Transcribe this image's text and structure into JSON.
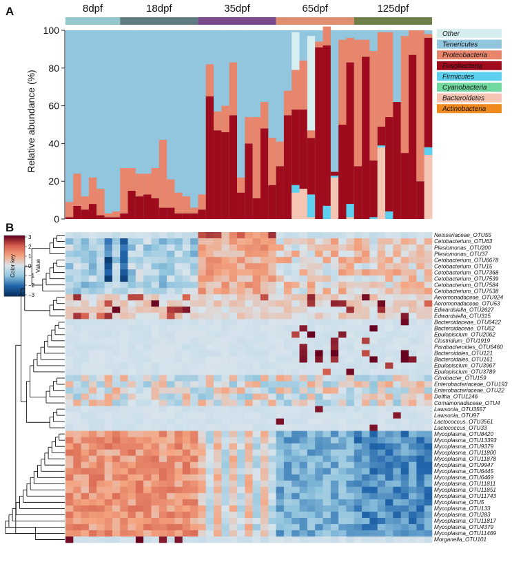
{
  "panels": {
    "a": "A",
    "b": "B"
  },
  "chart_data": [
    {
      "type": "bar",
      "stacked": true,
      "title": "",
      "xlabel": "",
      "ylabel": "Relative abundance (%)",
      "ylim": [
        0,
        100
      ],
      "yticks": [
        "0",
        "20",
        "40",
        "60",
        "80",
        "100"
      ],
      "groups": [
        {
          "label": "8dpf",
          "color": "#93c7cc",
          "count": 7
        },
        {
          "label": "18dpf",
          "color": "#5f7d80",
          "count": 10
        },
        {
          "label": "35dpf",
          "color": "#7a4a8c",
          "count": 10
        },
        {
          "label": "65dpf",
          "color": "#e0906e",
          "count": 10
        },
        {
          "label": "125dpf",
          "color": "#6e7f48",
          "count": 10
        }
      ],
      "legend": [
        {
          "name": "Other",
          "color": "#d7eef0"
        },
        {
          "name": "Tenericutes",
          "color": "#92c5de"
        },
        {
          "name": "Proteobacteria",
          "color": "#e8866d"
        },
        {
          "name": "Fusobacteria",
          "color": "#9d0b1d"
        },
        {
          "name": "Firmicutes",
          "color": "#5dd0f0"
        },
        {
          "name": "Cyanobacteria",
          "color": "#70d9a0"
        },
        {
          "name": "Bacteroidetes",
          "color": "#f5c6b4"
        },
        {
          "name": "Actinobacteria",
          "color": "#f08a1c"
        }
      ],
      "series": [
        {
          "name": "Bacteroidetes",
          "values": [
            0,
            0,
            0,
            0,
            0,
            0,
            0,
            0,
            0,
            0,
            0,
            0,
            0,
            0,
            0,
            0,
            0,
            0,
            0,
            0,
            0,
            0,
            0,
            0,
            0,
            0,
            0,
            0,
            0,
            14,
            16,
            1,
            0,
            0,
            22,
            0,
            1,
            0,
            0,
            0,
            38,
            0,
            0,
            0,
            0,
            0,
            34
          ]
        },
        {
          "name": "Firmicutes",
          "values": [
            0,
            0,
            0,
            0,
            0,
            0,
            0,
            0,
            0,
            0,
            0,
            0,
            0,
            0,
            0,
            0,
            0,
            0,
            0,
            0,
            0,
            0,
            0,
            0,
            0,
            0,
            0,
            0,
            0,
            4,
            0,
            12,
            0,
            7,
            1,
            0,
            7,
            0,
            0,
            1,
            1,
            4,
            0,
            0,
            0,
            0,
            4
          ]
        },
        {
          "name": "Fusobacteria",
          "values": [
            1,
            7,
            5,
            8,
            2,
            1,
            1,
            3,
            15,
            12,
            13,
            11,
            6,
            6,
            3,
            3,
            3,
            5,
            65,
            47,
            46,
            55,
            14,
            40,
            11,
            48,
            18,
            28,
            55,
            40,
            42,
            30,
            91,
            85,
            2,
            50,
            75,
            28,
            86,
            30,
            10,
            50,
            62,
            35,
            87,
            20,
            58
          ]
        },
        {
          "name": "Proteobacteria",
          "values": [
            8,
            17,
            7,
            14,
            14,
            2,
            3,
            24,
            12,
            12,
            11,
            16,
            36,
            15,
            11,
            9,
            3,
            8,
            17,
            10,
            14,
            28,
            8,
            14,
            43,
            14,
            25,
            13,
            13,
            21,
            26,
            4,
            3,
            10,
            0,
            45,
            13,
            67,
            9,
            58,
            50,
            45,
            0,
            62,
            13,
            80,
            2
          ]
        },
        {
          "name": "Other",
          "values": [
            0,
            0,
            0,
            0,
            0,
            0,
            0,
            0,
            0,
            0,
            0,
            0,
            0,
            0,
            0,
            0,
            0,
            0,
            0,
            0,
            0,
            0,
            0,
            0,
            0,
            0,
            0,
            0,
            0,
            20,
            0,
            50,
            0,
            0,
            0,
            0,
            0,
            0,
            0,
            0,
            0,
            0,
            0,
            0,
            0,
            0,
            0
          ]
        }
      ]
    },
    {
      "type": "heatmap",
      "title": "",
      "colorbar": {
        "title": "Color key",
        "sublabel": "Value",
        "ticks": [
          "3",
          "2",
          "1",
          "0",
          "−1",
          "−2",
          "−3"
        ]
      },
      "rows": [
        "Neisseriaceae_OTU55",
        "Cetobacterium_OTU63",
        "Plesiomonas_OTU200",
        "Plesiomonas_OTU37",
        "Cetobacterium_OTU6678",
        "Cetobacterium_OTU15",
        "Cetobacterium_OTU7368",
        "Cetobacterium_OTU7539",
        "Cetobacterium_OTU7584",
        "Cetobacterium_OTU7538",
        "Aeromonadaceae_OTU924",
        "Aeromonadaceae_OTU53",
        "Edwardsiella_OTU2627",
        "Edwardsiella_OTU315",
        "Bacteroidaceae_OTU6422",
        "Bacteroidaceae_OTU62",
        "Epulopiscium_OTU2062",
        "Clostridium_OTU1919",
        "Parabacteroides_OTU6460",
        "Bacteroidales_OTU121",
        "Bacteroidales_OTU161",
        "Epulopiscium_OTU3967",
        "Epulopiscium_OTU3789",
        "Citrobacter_OTU159",
        "Enterobacteriaceae_OTU193",
        "Enterobacteriaceae_OTU22",
        "Delftia_OTU1246",
        "Comamonadaceae_OTU4",
        "Lawsonia_OTU3557",
        "Lawsonia_OTU97",
        "Lactococcus_OTU3561",
        "Lactococcus_OTU33",
        "Mycoplasma_OTU8420",
        "Mycoplasma_OTU13393",
        "Mycoplasma_OTU9379",
        "Mycoplasma_OTU11800",
        "Mycoplasma_OTU11878",
        "Mycoplasma_OTU9947",
        "Mycoplasma_OTU6445",
        "Mycoplasma_OTU6469",
        "Mycoplasma_OTU11811",
        "Mycoplasma_OTU11851",
        "Mycoplasma_OTU11743",
        "Mycoplasma_OTU5",
        "Mycoplasma_OTU133",
        "Mycoplasma_OTU283",
        "Mycoplasma_OTU11817",
        "Mycoplasma_OTU4379",
        "Mycoplasma_OTU11469",
        "Morganella_OTU101"
      ]
    }
  ]
}
